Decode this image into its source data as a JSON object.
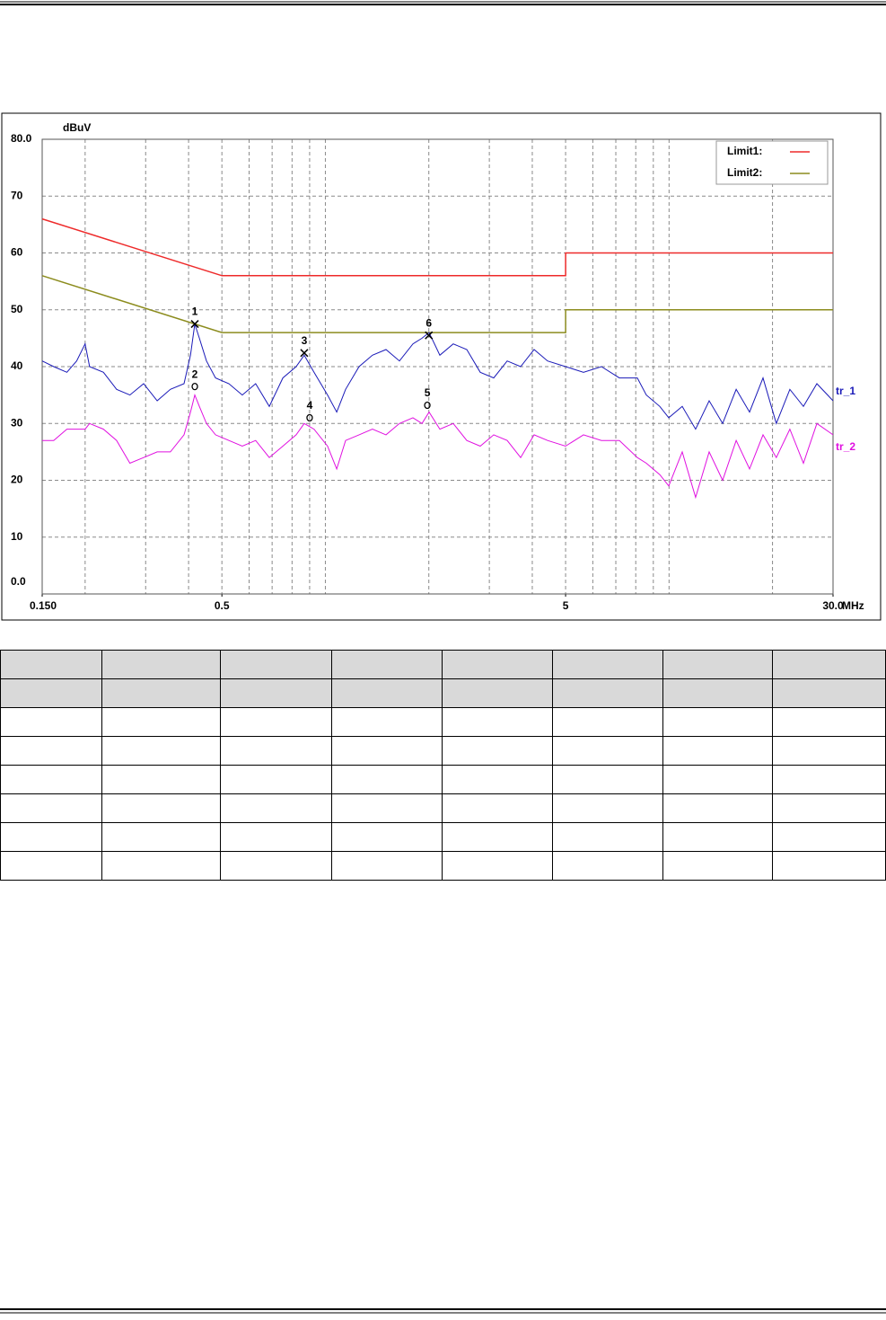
{
  "chart_data": {
    "type": "line",
    "xlog": true,
    "y_unit_label": "dBuV",
    "x_unit_label": "MHz",
    "xlim": [
      0.15,
      30
    ],
    "ylim": [
      0,
      80
    ],
    "xticks": [
      {
        "value": 0.15,
        "label": "0.150"
      },
      0.5,
      5,
      {
        "value": 30,
        "label": "30.0"
      }
    ],
    "xgrid": [
      0.2,
      0.3,
      0.4,
      0.5,
      0.6,
      0.7,
      0.8,
      0.9,
      1,
      2,
      3,
      4,
      5,
      6,
      7,
      8,
      9,
      10,
      20,
      30
    ],
    "yticks": [
      {
        "value": 0,
        "label": "0.0"
      },
      10,
      20,
      30,
      40,
      50,
      60,
      70,
      {
        "value": 80,
        "label": "80.0"
      }
    ],
    "grid": true,
    "legend_position": "upper right",
    "series": [
      {
        "name": "Limit1:",
        "color": "#ee2a2a",
        "legend": true,
        "x": [
          0.15,
          0.5,
          5,
          5,
          30
        ],
        "values": [
          66,
          56,
          56,
          60,
          60
        ]
      },
      {
        "name": "Limit2:",
        "color": "#8c8c1e",
        "legend": true,
        "x": [
          0.15,
          0.5,
          5,
          5,
          30
        ],
        "values": [
          56,
          46,
          46,
          50,
          50
        ]
      },
      {
        "name": "tr_1",
        "color": "#1a1ab8",
        "legend": false,
        "x": [
          0.15,
          0.162,
          0.177,
          0.189,
          0.2,
          0.206,
          0.226,
          0.247,
          0.27,
          0.296,
          0.324,
          0.354,
          0.388,
          0.405,
          0.417,
          0.43,
          0.451,
          0.479,
          0.524,
          0.573,
          0.627,
          0.687,
          0.752,
          0.822,
          0.868,
          0.927,
          1.015,
          1.079,
          1.145,
          1.253,
          1.371,
          1.501,
          1.643,
          1.798,
          1.91,
          2.004,
          2.154,
          2.355,
          2.58,
          2.823,
          3.089,
          3.381,
          3.699,
          4.05,
          4.431,
          4.998,
          5.637,
          6.358,
          7.17,
          8.087,
          8.587,
          9.399,
          9.98,
          10.92,
          11.95,
          13.08,
          14.32,
          15.68,
          17.15,
          18.77,
          20.52,
          22.47,
          24.6,
          26.92,
          30.0
        ],
        "values": [
          41,
          40,
          39,
          41,
          44,
          40,
          39,
          36,
          35,
          37,
          34,
          36,
          37,
          42,
          47.5,
          45,
          41,
          38,
          37,
          35,
          37,
          33,
          38,
          40,
          42,
          39,
          35,
          32,
          36,
          40,
          42,
          43,
          41,
          44,
          45,
          46,
          42,
          44,
          43,
          39,
          38,
          41,
          40,
          43,
          41,
          40,
          39,
          40,
          38,
          38,
          35,
          33,
          31,
          33,
          29,
          34,
          30,
          36,
          32,
          38,
          30,
          36,
          33,
          37,
          34
        ]
      },
      {
        "name": "tr_2",
        "color": "#e010e0",
        "legend": false,
        "x": [
          0.15,
          0.162,
          0.177,
          0.189,
          0.2,
          0.206,
          0.226,
          0.247,
          0.27,
          0.296,
          0.324,
          0.354,
          0.388,
          0.405,
          0.417,
          0.43,
          0.451,
          0.479,
          0.524,
          0.573,
          0.627,
          0.687,
          0.752,
          0.822,
          0.868,
          0.927,
          1.015,
          1.079,
          1.145,
          1.253,
          1.371,
          1.501,
          1.643,
          1.798,
          1.91,
          2.004,
          2.154,
          2.355,
          2.58,
          2.823,
          3.089,
          3.381,
          3.699,
          4.05,
          4.431,
          4.998,
          5.637,
          6.358,
          7.17,
          8.087,
          8.587,
          9.399,
          9.98,
          10.92,
          11.95,
          13.08,
          14.32,
          15.68,
          17.15,
          18.77,
          20.52,
          22.47,
          24.6,
          26.92,
          30.0
        ],
        "values": [
          27,
          27,
          29,
          29,
          29,
          30,
          29,
          27,
          23,
          24,
          25,
          25,
          28,
          32,
          35,
          33,
          30,
          28,
          27,
          26,
          27,
          24,
          26,
          28,
          30,
          29,
          26,
          22,
          27,
          28,
          29,
          28,
          30,
          31,
          30,
          32,
          29,
          30,
          27,
          26,
          28,
          27,
          24,
          28,
          27,
          26,
          28,
          27,
          27,
          24,
          23,
          21,
          19,
          25,
          17,
          25,
          20,
          27,
          22,
          28,
          24,
          29,
          23,
          30,
          28
        ]
      }
    ],
    "markers": [
      {
        "label": "1",
        "x": 0.417,
        "y": 47.5,
        "shape": "cross"
      },
      {
        "label": "2",
        "x": 0.417,
        "y": 36.5,
        "shape": "circle"
      },
      {
        "label": "3",
        "x": 0.868,
        "y": 42.4,
        "shape": "cross"
      },
      {
        "label": "4",
        "x": 0.9,
        "y": 31,
        "shape": "circle"
      },
      {
        "label": "5",
        "x": 1.98,
        "y": 33.2,
        "shape": "circle"
      },
      {
        "label": "6",
        "x": 2.0,
        "y": 45.5,
        "shape": "cross"
      }
    ]
  }
}
